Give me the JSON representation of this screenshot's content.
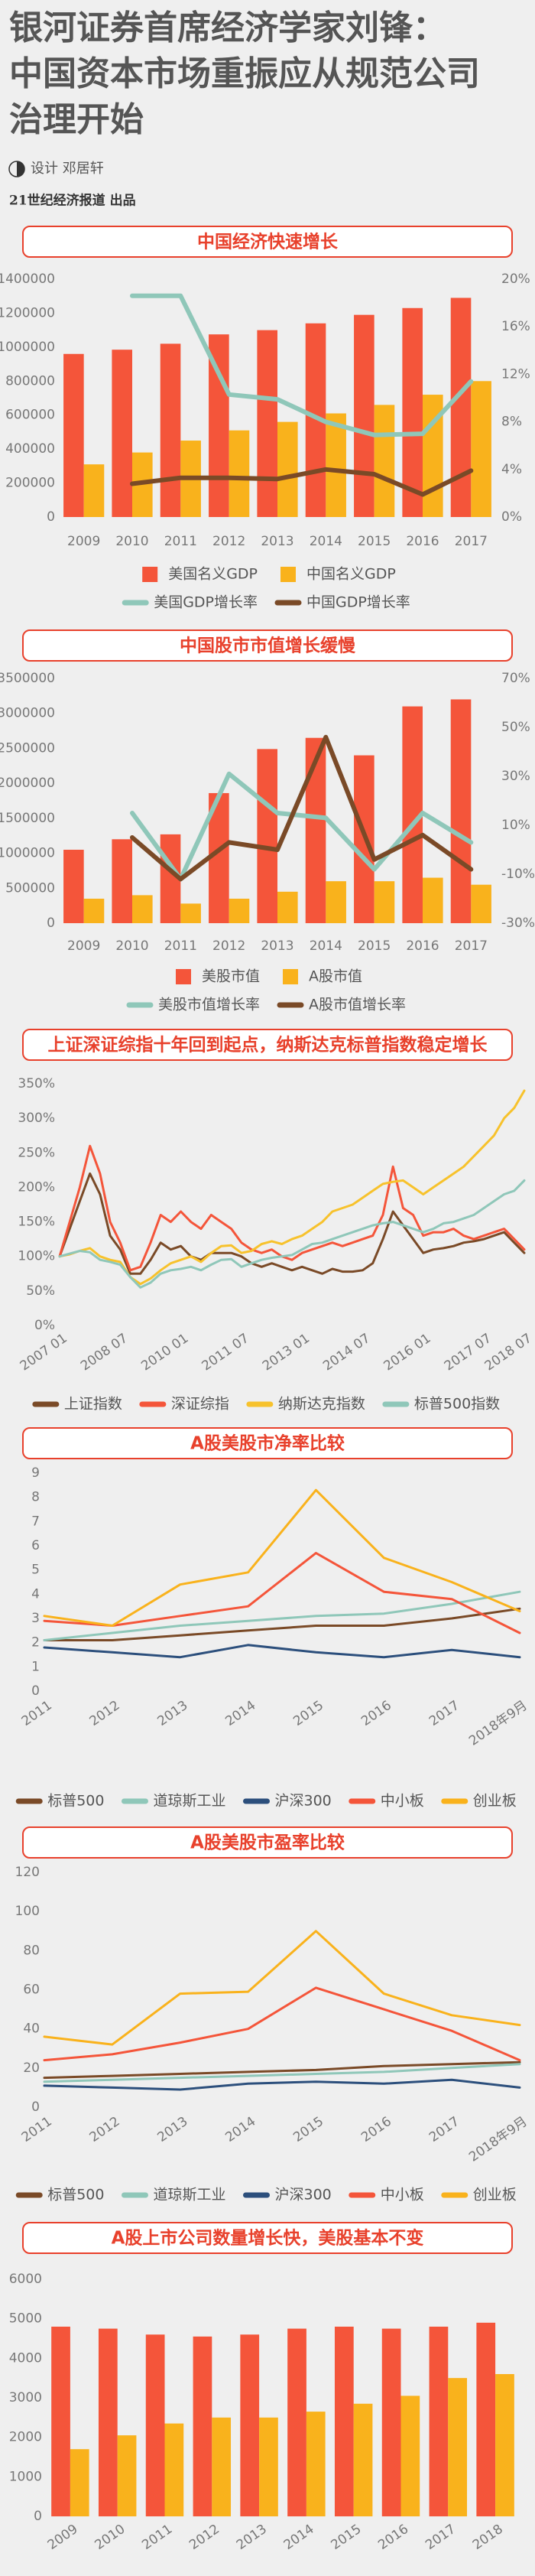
{
  "header": {
    "title": [
      "银河证券首席经济学家刘锋：",
      "中国资本市场重振应从规范公司",
      "治理开始"
    ],
    "design": "设计  邓居轩",
    "publisher": "21世纪经济报道  出品"
  },
  "chart_data": [
    {
      "type": "bar",
      "title": "中国经济快速增长",
      "categories": [
        "2009",
        "2010",
        "2011",
        "2012",
        "2013",
        "2014",
        "2015",
        "2016",
        "2017"
      ],
      "series": [
        {
          "name": "美国名义GDP",
          "type": "bar",
          "color": "#f4553a",
          "values": [
            960000,
            985000,
            1020000,
            1075000,
            1100000,
            1140000,
            1190000,
            1230000,
            1290000
          ]
        },
        {
          "name": "中国名义GDP",
          "type": "bar",
          "color": "#f9b21c",
          "values": [
            310000,
            380000,
            450000,
            510000,
            560000,
            610000,
            660000,
            720000,
            800000
          ]
        },
        {
          "name": "美国GDP增长率",
          "type": "line",
          "axis": "y2",
          "color": "#8fc7b9",
          "values": [
            null,
            18.6,
            18.6,
            10.3,
            9.9,
            8,
            6.9,
            7,
            11.4
          ]
        },
        {
          "name": "中国GDP增长率",
          "type": "line",
          "axis": "y2",
          "color": "#7a4a27",
          "values": [
            null,
            2.8,
            3.3,
            3.3,
            3.2,
            4,
            3.6,
            1.9,
            3.9
          ]
        }
      ],
      "ylim": [
        0,
        1400000
      ],
      "yticks": [
        0,
        200000,
        400000,
        600000,
        800000,
        1000000,
        1200000,
        1400000
      ],
      "y2lim": [
        0,
        20
      ],
      "y2ticks": [
        {
          "value": 0,
          "label": "0%"
        },
        {
          "value": 4,
          "label": "4%"
        },
        {
          "value": 8,
          "label": "8%"
        },
        {
          "value": 12,
          "label": "12%"
        },
        {
          "value": 16,
          "label": "16%"
        },
        {
          "value": 20,
          "label": "20%"
        }
      ]
    },
    {
      "type": "bar",
      "title": "中国股市市值增长缓慢",
      "categories": [
        "2009",
        "2010",
        "2011",
        "2012",
        "2013",
        "2014",
        "2015",
        "2016",
        "2017"
      ],
      "series": [
        {
          "name": "美股市值",
          "type": "bar",
          "color": "#f4553a",
          "values": [
            1050000,
            1200000,
            1270000,
            1860000,
            2490000,
            2650000,
            2400000,
            3100000,
            3200000
          ]
        },
        {
          "name": "A股市值",
          "type": "bar",
          "color": "#f9b21c",
          "values": [
            350000,
            400000,
            280000,
            350000,
            450000,
            600000,
            600000,
            650000,
            550000
          ]
        },
        {
          "name": "美股市值增长率",
          "type": "line",
          "axis": "y2",
          "color": "#8fc7b9",
          "values": [
            null,
            15,
            -12,
            31,
            15,
            13,
            -8,
            15,
            3
          ]
        },
        {
          "name": "A股市值增长率",
          "type": "line",
          "axis": "y2",
          "color": "#7a4a27",
          "values": [
            null,
            5,
            -12,
            3,
            0,
            46,
            -4,
            6,
            -8
          ]
        }
      ],
      "ylim": [
        0,
        3500000
      ],
      "yticks": [
        0,
        500000,
        1000000,
        1500000,
        2000000,
        2500000,
        3000000,
        3500000
      ],
      "y2lim": [
        -30,
        70
      ],
      "y2ticks": [
        {
          "value": -30,
          "label": "-30%"
        },
        {
          "value": -10,
          "label": "-10%"
        },
        {
          "value": 10,
          "label": "10%"
        },
        {
          "value": 30,
          "label": "30%"
        },
        {
          "value": 50,
          "label": "50%"
        },
        {
          "value": 70,
          "label": "70%"
        }
      ]
    },
    {
      "type": "line",
      "title": "上证深证综指十年回到起点，纳斯达克标普指数稳定增长",
      "categories": [
        "2007 01",
        null,
        null,
        null,
        null,
        null,
        "2008 07",
        null,
        null,
        null,
        null,
        null,
        "2010 01",
        null,
        null,
        null,
        null,
        null,
        "2011 07",
        null,
        null,
        null,
        null,
        null,
        "2013 01",
        null,
        null,
        null,
        null,
        null,
        "2014 07",
        null,
        null,
        null,
        null,
        null,
        "2016 01",
        null,
        null,
        null,
        null,
        null,
        "2017 07",
        null,
        null,
        null,
        "2018 07"
      ],
      "series": [
        {
          "name": "上证指数",
          "color": "#7a4a27",
          "values": [
            100,
            140,
            180,
            220,
            190,
            130,
            110,
            75,
            75,
            95,
            120,
            110,
            115,
            100,
            95,
            105,
            105,
            105,
            100,
            90,
            85,
            90,
            85,
            80,
            85,
            80,
            75,
            82,
            78,
            78,
            80,
            90,
            125,
            165,
            145,
            125,
            105,
            110,
            112,
            115,
            120,
            122,
            125,
            130,
            135,
            120,
            105
          ]
        },
        {
          "name": "深证综指",
          "color": "#f4553a",
          "values": [
            100,
            150,
            200,
            260,
            220,
            150,
            120,
            80,
            85,
            120,
            160,
            150,
            165,
            150,
            140,
            160,
            150,
            140,
            120,
            110,
            105,
            110,
            100,
            95,
            105,
            110,
            115,
            120,
            115,
            120,
            125,
            130,
            160,
            230,
            170,
            160,
            130,
            135,
            135,
            140,
            130,
            125,
            130,
            135,
            140,
            125,
            110
          ]
        },
        {
          "name": "纳斯达克指数",
          "color": "#f7c22c",
          "values": [
            100,
            103,
            108,
            112,
            100,
            95,
            92,
            70,
            60,
            68,
            80,
            90,
            95,
            100,
            92,
            105,
            115,
            116,
            105,
            108,
            118,
            122,
            118,
            125,
            130,
            140,
            150,
            165,
            170,
            175,
            185,
            195,
            205,
            208,
            210,
            200,
            190,
            200,
            210,
            220,
            230,
            245,
            260,
            275,
            300,
            315,
            340
          ]
        },
        {
          "name": "标普500指数",
          "color": "#8fc7b9",
          "values": [
            100,
            104,
            108,
            106,
            95,
            92,
            88,
            70,
            55,
            62,
            75,
            80,
            82,
            85,
            80,
            88,
            95,
            96,
            85,
            90,
            95,
            98,
            100,
            102,
            110,
            118,
            120,
            125,
            130,
            135,
            140,
            145,
            148,
            150,
            145,
            140,
            135,
            140,
            148,
            150,
            155,
            160,
            170,
            180,
            190,
            195,
            210
          ]
        }
      ],
      "ylim": [
        0,
        350
      ],
      "yticks": [
        {
          "value": 0,
          "label": "0%"
        },
        {
          "value": 50,
          "label": "50%"
        },
        {
          "value": 100,
          "label": "100%"
        },
        {
          "value": 150,
          "label": "150%"
        },
        {
          "value": 200,
          "label": "200%"
        },
        {
          "value": 250,
          "label": "250%"
        },
        {
          "value": 300,
          "label": "300%"
        },
        {
          "value": 350,
          "label": "350%"
        }
      ]
    },
    {
      "type": "line",
      "title": "A股美股市净率比较",
      "categories": [
        "2011",
        "2012",
        "2013",
        "2014",
        "2015",
        "2016",
        "2017",
        "2018年9月"
      ],
      "series": [
        {
          "name": "标普500",
          "color": "#7a4a27",
          "values": [
            2.1,
            2.1,
            2.3,
            2.5,
            2.7,
            2.7,
            3.0,
            3.4
          ]
        },
        {
          "name": "道琼斯工业",
          "color": "#8fc7b9",
          "values": [
            2.1,
            2.4,
            2.7,
            2.9,
            3.1,
            3.2,
            3.6,
            4.1
          ]
        },
        {
          "name": "沪深300",
          "color": "#2c4f7c",
          "values": [
            1.8,
            1.6,
            1.4,
            1.9,
            1.6,
            1.4,
            1.7,
            1.4
          ]
        },
        {
          "name": "中小板",
          "color": "#f4553a",
          "values": [
            2.9,
            2.7,
            3.1,
            3.5,
            5.7,
            4.1,
            3.8,
            2.4
          ]
        },
        {
          "name": "创业板",
          "color": "#f9b21c",
          "values": [
            3.1,
            2.7,
            4.4,
            4.9,
            8.3,
            5.5,
            4.5,
            3.3
          ]
        }
      ],
      "ylim": [
        0,
        9
      ],
      "yticks": [
        0,
        1,
        2,
        3,
        4,
        5,
        6,
        7,
        8,
        9
      ]
    },
    {
      "type": "line",
      "title": "A股美股市盈率比较",
      "categories": [
        "2011",
        "2012",
        "2013",
        "2014",
        "2015",
        "2016",
        "2017",
        "2018年9月"
      ],
      "series": [
        {
          "name": "标普500",
          "color": "#7a4a27",
          "values": [
            15,
            16,
            17,
            18,
            19,
            21,
            22,
            23
          ]
        },
        {
          "name": "道琼斯工业",
          "color": "#8fc7b9",
          "values": [
            13,
            14,
            15,
            16,
            17,
            18,
            20,
            22
          ]
        },
        {
          "name": "沪深300",
          "color": "#2c4f7c",
          "values": [
            11,
            10,
            9,
            12,
            13,
            12,
            14,
            10
          ]
        },
        {
          "name": "中小板",
          "color": "#f4553a",
          "values": [
            24,
            27,
            33,
            40,
            61,
            50,
            39,
            24
          ]
        },
        {
          "name": "创业板",
          "color": "#f9b21c",
          "values": [
            36,
            32,
            58,
            59,
            90,
            58,
            47,
            42
          ]
        }
      ],
      "ylim": [
        0,
        120
      ],
      "yticks": [
        0,
        20,
        40,
        60,
        80,
        100,
        120
      ]
    },
    {
      "type": "bar",
      "title": "A股上市公司数量增长快，美股基本不变",
      "categories": [
        "2009",
        "2010",
        "2011",
        "2012",
        "2013",
        "2014",
        "2015",
        "2016",
        "2017",
        "2018"
      ],
      "series": [
        {
          "type": "bar",
          "color": "#f4553a",
          "values": [
            4800,
            4750,
            4600,
            4550,
            4600,
            4750,
            4800,
            4750,
            4800,
            4900
          ]
        },
        {
          "type": "bar",
          "color": "#f9b21c",
          "values": [
            1700,
            2050,
            2350,
            2500,
            2500,
            2650,
            2850,
            3050,
            3500,
            3600
          ]
        }
      ],
      "ylim": [
        0,
        6000
      ],
      "yticks": [
        0,
        1000,
        2000,
        3000,
        4000,
        5000,
        6000
      ]
    }
  ]
}
